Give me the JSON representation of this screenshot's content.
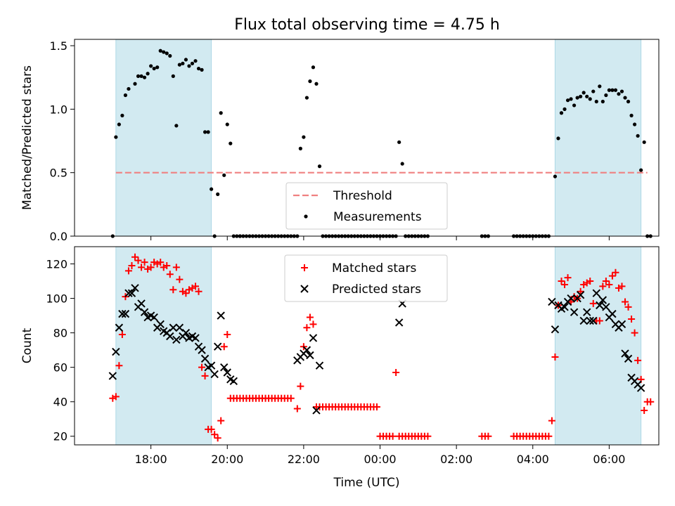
{
  "title": "Flux total observing time = 4.75 h",
  "chart_data": [
    {
      "type": "scatter",
      "panel": "top",
      "ylabel": "Matched/Predicted stars",
      "xlabel": "",
      "xlim_hours": [
        16.0,
        7.3
      ],
      "ylim": [
        0,
        1.55
      ],
      "yticks": [
        0.0,
        0.5,
        1.0,
        1.5
      ],
      "ytick_labels": [
        "0.0",
        "0.5",
        "1.0",
        "1.5"
      ],
      "shaded_intervals": [
        [
          "17:05",
          "19:35"
        ],
        [
          "04:35",
          "06:50"
        ]
      ],
      "shade_color": "#add8e6",
      "threshold": {
        "name": "Threshold",
        "value": 0.5,
        "x_range": [
          "17:05",
          "07:00"
        ],
        "color": "#f08080"
      },
      "series": [
        {
          "name": "Measurements",
          "color": "#000000",
          "marker": "dot",
          "x": [
            "17:00",
            "17:05",
            "17:10",
            "17:15",
            "17:20",
            "17:25",
            "17:35",
            "17:40",
            "17:45",
            "17:50",
            "17:55",
            "18:00",
            "18:05",
            "18:10",
            "18:15",
            "18:20",
            "18:25",
            "18:30",
            "18:35",
            "18:40",
            "18:45",
            "18:50",
            "18:55",
            "19:00",
            "19:05",
            "19:10",
            "19:15",
            "19:20",
            "19:25",
            "19:30",
            "19:35",
            "19:40",
            "19:45",
            "19:50",
            "19:55",
            "20:00",
            "20:05",
            "20:10",
            "20:15",
            "20:20",
            "21:55",
            "22:00",
            "22:05",
            "22:10",
            "22:15",
            "22:20",
            "22:25",
            "22:30",
            "00:30",
            "00:35",
            "04:35",
            "04:40",
            "04:45",
            "04:50",
            "04:55",
            "05:00",
            "05:05",
            "05:10",
            "05:15",
            "05:20",
            "05:25",
            "05:30",
            "05:35",
            "05:40",
            "05:45",
            "05:50",
            "05:55",
            "06:00",
            "06:05",
            "06:10",
            "06:15",
            "06:20",
            "06:25",
            "06:30",
            "06:35",
            "06:40",
            "06:45",
            "06:50",
            "06:55",
            "07:00"
          ],
          "y": [
            0.0,
            0.78,
            0.88,
            0.95,
            1.11,
            1.16,
            1.2,
            1.26,
            1.26,
            1.25,
            1.28,
            1.34,
            1.32,
            1.33,
            1.46,
            1.45,
            1.44,
            1.42,
            1.26,
            0.87,
            1.35,
            1.36,
            1.39,
            1.34,
            1.36,
            1.38,
            1.32,
            1.31,
            0.82,
            0.82,
            0.37,
            0.0,
            0.33,
            0.97,
            0.48,
            0.88,
            0.73,
            0.0,
            0.0,
            0.0,
            0.69,
            0.78,
            1.09,
            1.22,
            1.33,
            1.2,
            0.55,
            0.0,
            0.74,
            0.57,
            0.47,
            0.77,
            0.97,
            1.0,
            1.07,
            1.08,
            1.03,
            1.09,
            1.1,
            1.13,
            1.1,
            1.08,
            1.14,
            1.06,
            1.18,
            1.06,
            1.11,
            1.15,
            1.15,
            1.15,
            1.12,
            1.14,
            1.09,
            1.06,
            0.95,
            0.88,
            0.79,
            0.52,
            0.74,
            0.0
          ]
        },
        {
          "name": "",
          "color": "#000000",
          "marker": "dot",
          "x": [
            "20:20",
            "20:25",
            "20:30",
            "20:35",
            "20:40",
            "20:45",
            "20:50",
            "20:55",
            "21:00",
            "21:05",
            "21:10",
            "21:15",
            "21:20",
            "21:25",
            "21:30",
            "21:35",
            "21:40",
            "21:45",
            "21:50",
            "22:35",
            "22:40",
            "22:45",
            "22:50",
            "22:55",
            "23:00",
            "23:05",
            "23:10",
            "23:15",
            "23:20",
            "23:25",
            "23:30",
            "23:35",
            "23:40",
            "23:45",
            "23:50",
            "23:55",
            "00:00",
            "00:05",
            "00:10",
            "00:15",
            "00:20",
            "00:25",
            "00:40",
            "00:45",
            "00:50",
            "00:55",
            "01:00",
            "01:05",
            "01:10",
            "01:15",
            "02:40",
            "02:45",
            "02:50",
            "03:30",
            "03:35",
            "03:40",
            "03:45",
            "03:50",
            "03:55",
            "04:00",
            "04:05",
            "04:10",
            "04:15",
            "04:20",
            "04:25",
            "07:05"
          ],
          "y": [
            0,
            0,
            0,
            0,
            0,
            0,
            0,
            0,
            0,
            0,
            0,
            0,
            0,
            0,
            0,
            0,
            0,
            0,
            0,
            0,
            0,
            0,
            0,
            0,
            0,
            0,
            0,
            0,
            0,
            0,
            0,
            0,
            0,
            0,
            0,
            0,
            0,
            0,
            0,
            0,
            0,
            0,
            0,
            0,
            0,
            0,
            0,
            0,
            0,
            0,
            0,
            0,
            0,
            0,
            0,
            0,
            0,
            0,
            0,
            0,
            0,
            0,
            0,
            0,
            0,
            0
          ]
        }
      ],
      "legend": [
        {
          "label": "Threshold",
          "kind": "dashed-line",
          "color": "#f08080"
        },
        {
          "label": "Measurements",
          "kind": "dot",
          "color": "#000000"
        }
      ]
    },
    {
      "type": "scatter",
      "panel": "bottom",
      "xlabel": "Time (UTC)",
      "ylabel": "Count",
      "xlim_hours": [
        16.0,
        7.3
      ],
      "ylim": [
        15,
        130
      ],
      "yticks": [
        20,
        40,
        60,
        80,
        100,
        120
      ],
      "ytick_labels": [
        "20",
        "40",
        "60",
        "80",
        "100",
        "120"
      ],
      "xticks": [
        "18:00",
        "20:00",
        "22:00",
        "00:00",
        "02:00",
        "04:00",
        "06:00"
      ],
      "shaded_intervals": [
        [
          "17:05",
          "19:35"
        ],
        [
          "04:35",
          "06:50"
        ]
      ],
      "shade_color": "#add8e6",
      "series": [
        {
          "name": "Matched stars",
          "color": "#ff0000",
          "marker": "plus",
          "x": [
            "17:00",
            "17:05",
            "17:10",
            "17:15",
            "17:20",
            "17:25",
            "17:30",
            "17:35",
            "17:40",
            "17:45",
            "17:50",
            "17:55",
            "18:00",
            "18:05",
            "18:10",
            "18:15",
            "18:20",
            "18:25",
            "18:30",
            "18:35",
            "18:40",
            "18:45",
            "18:50",
            "18:55",
            "19:00",
            "19:05",
            "19:10",
            "19:15",
            "19:20",
            "19:25",
            "19:30",
            "19:35",
            "19:40",
            "19:45",
            "19:50",
            "19:55",
            "20:00",
            "20:05",
            "20:10",
            "20:15",
            "20:20",
            "21:50",
            "21:55",
            "22:00",
            "22:05",
            "22:10",
            "22:15",
            "22:20",
            "22:25",
            "00:25",
            "00:30",
            "04:30",
            "04:35",
            "04:40",
            "04:45",
            "04:50",
            "04:55",
            "05:00",
            "05:05",
            "05:10",
            "05:15",
            "05:20",
            "05:25",
            "05:30",
            "05:35",
            "05:40",
            "05:45",
            "05:50",
            "05:55",
            "06:00",
            "06:05",
            "06:10",
            "06:15",
            "06:20",
            "06:25",
            "06:30",
            "06:35",
            "06:40",
            "06:45",
            "06:50",
            "06:55",
            "07:00"
          ],
          "y": [
            42,
            43,
            61,
            79,
            101,
            116,
            119,
            124,
            122,
            118,
            121,
            117,
            118,
            121,
            120,
            121,
            118,
            119,
            114,
            105,
            118,
            111,
            104,
            103,
            105,
            106,
            107,
            104,
            60,
            55,
            24,
            24,
            21,
            19,
            29,
            72,
            79,
            42,
            42,
            42,
            42,
            36,
            49,
            72,
            83,
            89,
            85,
            37,
            37,
            57,
            20,
            29,
            66,
            96,
            110,
            108,
            112,
            98,
            101,
            100,
            104,
            108,
            109,
            110,
            97,
            87,
            87,
            107,
            110,
            108,
            113,
            115,
            106,
            107,
            98,
            95,
            88,
            80,
            64,
            53,
            35,
            40
          ]
        },
        {
          "name": "",
          "color": "#ff0000",
          "marker": "plus",
          "x": [
            "20:25",
            "20:30",
            "20:35",
            "20:40",
            "20:45",
            "20:50",
            "20:55",
            "21:00",
            "21:05",
            "21:10",
            "21:15",
            "21:20",
            "21:25",
            "21:30",
            "21:35",
            "21:40",
            "22:30",
            "22:35",
            "22:40",
            "22:45",
            "22:50",
            "22:55",
            "23:00",
            "23:05",
            "23:10",
            "23:15",
            "23:20",
            "23:25",
            "23:30",
            "23:35",
            "23:40",
            "23:45",
            "23:50",
            "23:55",
            "00:00",
            "00:05",
            "00:10",
            "00:15",
            "00:20",
            "00:35",
            "00:40",
            "00:45",
            "00:50",
            "00:55",
            "01:00",
            "01:05",
            "01:10",
            "01:15",
            "02:40",
            "02:45",
            "02:50",
            "03:30",
            "03:35",
            "03:40",
            "03:45",
            "03:50",
            "03:55",
            "04:00",
            "04:05",
            "04:10",
            "04:15",
            "04:20",
            "04:25",
            "07:05"
          ],
          "y": [
            42,
            42,
            42,
            42,
            42,
            42,
            42,
            42,
            42,
            42,
            42,
            42,
            42,
            42,
            42,
            42,
            37,
            37,
            37,
            37,
            37,
            37,
            37,
            37,
            37,
            37,
            37,
            37,
            37,
            37,
            37,
            37,
            37,
            37,
            20,
            20,
            20,
            20,
            20,
            20,
            20,
            20,
            20,
            20,
            20,
            20,
            20,
            20,
            20,
            20,
            20,
            20,
            20,
            20,
            20,
            20,
            20,
            20,
            20,
            20,
            20,
            20,
            20,
            40
          ]
        },
        {
          "name": "Predicted stars",
          "color": "#000000",
          "marker": "x",
          "x": [
            "17:00",
            "17:05",
            "17:10",
            "17:15",
            "17:20",
            "17:25",
            "17:30",
            "17:35",
            "17:40",
            "17:45",
            "17:50",
            "17:55",
            "18:00",
            "18:05",
            "18:10",
            "18:15",
            "18:20",
            "18:25",
            "18:30",
            "18:35",
            "18:40",
            "18:45",
            "18:50",
            "18:55",
            "19:00",
            "19:05",
            "19:10",
            "19:15",
            "19:20",
            "19:25",
            "19:30",
            "19:35",
            "19:40",
            "19:45",
            "19:50",
            "19:55",
            "20:00",
            "20:05",
            "20:10",
            "21:50",
            "21:55",
            "22:00",
            "22:05",
            "22:10",
            "22:15",
            "22:20",
            "22:25",
            "00:30",
            "00:35",
            "04:30",
            "04:35",
            "04:40",
            "04:45",
            "04:50",
            "04:55",
            "05:00",
            "05:05",
            "05:10",
            "05:15",
            "05:20",
            "05:25",
            "05:30",
            "05:35",
            "05:40",
            "05:45",
            "05:50",
            "05:55",
            "06:00",
            "06:05",
            "06:10",
            "06:15",
            "06:20",
            "06:25",
            "06:30",
            "06:35",
            "06:40",
            "06:45",
            "06:50"
          ],
          "y": [
            55,
            69,
            83,
            91,
            91,
            103,
            103,
            106,
            95,
            97,
            92,
            89,
            90,
            89,
            83,
            85,
            81,
            80,
            78,
            83,
            76,
            83,
            78,
            80,
            77,
            78,
            77,
            72,
            70,
            65,
            60,
            61,
            56,
            72,
            90,
            60,
            57,
            53,
            52,
            64,
            66,
            68,
            70,
            67,
            77,
            35,
            61,
            86,
            97,
            98,
            82,
            96,
            94,
            95,
            98,
            100,
            92,
            100,
            102,
            87,
            92,
            87,
            87,
            103,
            96,
            99,
            95,
            89,
            91,
            85,
            83,
            85,
            68,
            65,
            54,
            52,
            50,
            48
          ]
        }
      ],
      "legend": [
        {
          "label": "Matched stars",
          "kind": "plus",
          "color": "#ff0000"
        },
        {
          "label": "Predicted stars",
          "kind": "x",
          "color": "#000000"
        }
      ]
    }
  ]
}
